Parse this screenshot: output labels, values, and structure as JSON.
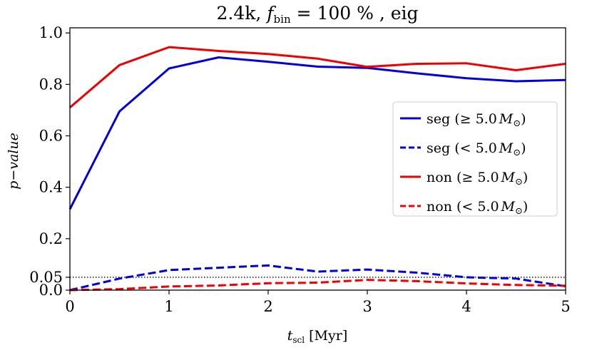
{
  "chart_data": {
    "type": "line",
    "title_parts": {
      "prefix": "2.4k, ",
      "f": "f",
      "sub": "bin",
      "eq": " = 100 % , eig"
    },
    "xlabel_parts": {
      "t": "t",
      "sub": "scl",
      "rest": " [Myr]"
    },
    "ylabel": "p−value",
    "xlim": [
      0,
      5
    ],
    "ylim": [
      0,
      1.02
    ],
    "xticks": [
      0,
      1,
      2,
      3,
      4,
      5
    ],
    "xtick_labels": [
      "0",
      "1",
      "2",
      "3",
      "4",
      "5"
    ],
    "yticks": [
      0.0,
      0.05,
      0.2,
      0.4,
      0.6,
      0.8,
      1.0
    ],
    "ytick_labels": [
      "0.0",
      "0.05",
      "0.2",
      "0.4",
      "0.6",
      "0.8",
      "1.0"
    ],
    "reference_line": {
      "y": 0.05,
      "style": "dotted",
      "color": "#000000"
    },
    "x": [
      0,
      0.5,
      1,
      1.5,
      2,
      2.5,
      3,
      3.5,
      4,
      4.5,
      5
    ],
    "series": [
      {
        "name": "seg (≥5.0M⊙)",
        "label": "seg",
        "range": "(≥ 5.0",
        "color": "#0000dd",
        "dash": "solid",
        "values": [
          0.315,
          0.695,
          0.862,
          0.905,
          0.888,
          0.869,
          0.864,
          0.843,
          0.824,
          0.812,
          0.817
        ]
      },
      {
        "name": "seg (<5.0M⊙)",
        "label": "seg",
        "range": "(< 5.0",
        "color": "#0000dd",
        "dash": "dashed",
        "values": [
          0.0,
          0.045,
          0.078,
          0.087,
          0.096,
          0.072,
          0.08,
          0.068,
          0.05,
          0.045,
          0.015
        ]
      },
      {
        "name": "non (≥5.0M⊙)",
        "label": "non",
        "range": "(≥ 5.0",
        "color": "#ee0000",
        "dash": "solid",
        "values": [
          0.71,
          0.875,
          0.945,
          0.93,
          0.918,
          0.9,
          0.868,
          0.88,
          0.882,
          0.855,
          0.88
        ]
      },
      {
        "name": "non (<5.0M⊙)",
        "label": "non",
        "range": "(< 5.0",
        "color": "#ee0000",
        "dash": "dashed",
        "values": [
          0.0,
          0.004,
          0.014,
          0.018,
          0.027,
          0.029,
          0.04,
          0.035,
          0.026,
          0.02,
          0.017
        ]
      }
    ],
    "legend_position": "center-right",
    "legend_mass_symbol": "M",
    "legend_sun_symbol": "⊙",
    "grid": false
  }
}
